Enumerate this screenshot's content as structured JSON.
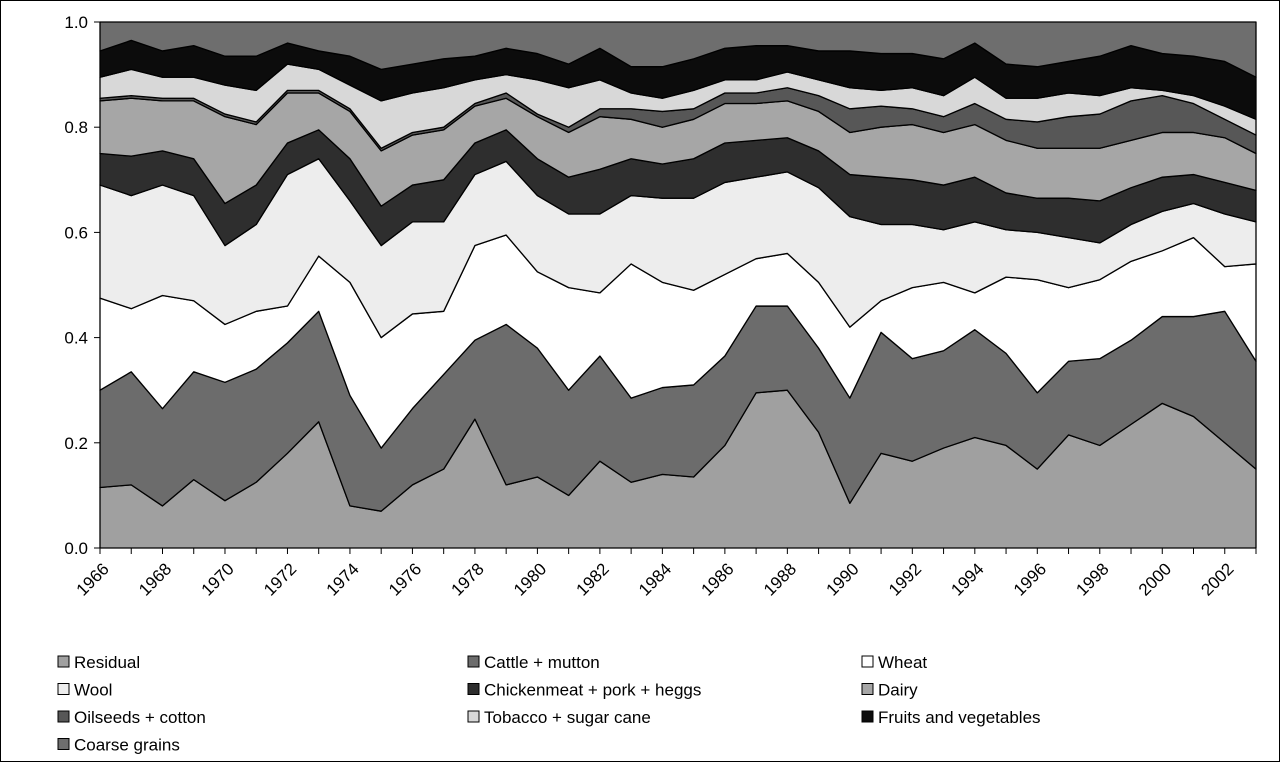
{
  "chart_data": {
    "type": "stacked_area",
    "categories": [
      "1966",
      null,
      "1968",
      null,
      "1970",
      null,
      "1972",
      null,
      "1974",
      null,
      "1976",
      null,
      "1978",
      null,
      "1980",
      null,
      "1982",
      null,
      "1984",
      null,
      "1986",
      null,
      "1988",
      null,
      "1990",
      null,
      "1992",
      null,
      "1994",
      null,
      "1996",
      null,
      "1998",
      null,
      "2000",
      null,
      "2002",
      null
    ],
    "ylim": [
      0,
      1
    ],
    "yticks": [
      {
        "value": 0,
        "label": "0.0"
      },
      0.2,
      0.4,
      0.6,
      0.8,
      {
        "value": 1,
        "label": "1.0"
      }
    ],
    "legend": "bottom",
    "series": [
      {
        "name": "Residual",
        "color": "#a0a0a0",
        "values": [
          0.115,
          0.12,
          0.08,
          0.13,
          0.09,
          0.125,
          0.18,
          0.24,
          0.08,
          0.07,
          0.12,
          0.15,
          0.245,
          0.12,
          0.135,
          0.1,
          0.165,
          0.125,
          0.14,
          0.135,
          0.195,
          0.295,
          0.3,
          0.22,
          0.085,
          0.18,
          0.165,
          0.19,
          0.21,
          0.195,
          0.15,
          0.215,
          0.195,
          0.235,
          0.275,
          0.25,
          0.2,
          0.15
        ]
      },
      {
        "name": "Cattle + mutton",
        "color": "#6c6c6c",
        "values": [
          0.185,
          0.215,
          0.185,
          0.205,
          0.225,
          0.215,
          0.21,
          0.21,
          0.21,
          0.12,
          0.145,
          0.18,
          0.15,
          0.305,
          0.245,
          0.2,
          0.2,
          0.16,
          0.165,
          0.175,
          0.17,
          0.165,
          0.16,
          0.16,
          0.2,
          0.23,
          0.195,
          0.185,
          0.205,
          0.175,
          0.145,
          0.14,
          0.165,
          0.16,
          0.165,
          0.19,
          0.25,
          0.205
        ]
      },
      {
        "name": "Wheat",
        "color": "#ffffff",
        "values": [
          0.175,
          0.12,
          0.215,
          0.135,
          0.11,
          0.11,
          0.07,
          0.105,
          0.215,
          0.21,
          0.18,
          0.12,
          0.18,
          0.17,
          0.145,
          0.195,
          0.12,
          0.255,
          0.2,
          0.18,
          0.155,
          0.09,
          0.1,
          0.125,
          0.135,
          0.06,
          0.135,
          0.13,
          0.07,
          0.145,
          0.215,
          0.14,
          0.15,
          0.15,
          0.125,
          0.15,
          0.085,
          0.185
        ]
      },
      {
        "name": "Wool",
        "color": "#ededed",
        "values": [
          0.215,
          0.215,
          0.21,
          0.2,
          0.15,
          0.165,
          0.25,
          0.185,
          0.155,
          0.175,
          0.175,
          0.17,
          0.135,
          0.14,
          0.145,
          0.14,
          0.15,
          0.13,
          0.16,
          0.175,
          0.175,
          0.155,
          0.155,
          0.18,
          0.21,
          0.145,
          0.12,
          0.1,
          0.135,
          0.09,
          0.09,
          0.095,
          0.07,
          0.07,
          0.075,
          0.065,
          0.1,
          0.08
        ]
      },
      {
        "name": "Chickenmeat + pork + heggs",
        "color": "#2e2e2e",
        "values": [
          0.06,
          0.075,
          0.065,
          0.07,
          0.08,
          0.075,
          0.06,
          0.055,
          0.08,
          0.075,
          0.07,
          0.08,
          0.06,
          0.06,
          0.07,
          0.07,
          0.085,
          0.07,
          0.065,
          0.075,
          0.075,
          0.07,
          0.065,
          0.07,
          0.08,
          0.09,
          0.085,
          0.085,
          0.085,
          0.07,
          0.065,
          0.075,
          0.08,
          0.07,
          0.065,
          0.055,
          0.06,
          0.06
        ]
      },
      {
        "name": "Dairy",
        "color": "#a6a6a6",
        "values": [
          0.1,
          0.11,
          0.095,
          0.11,
          0.165,
          0.115,
          0.095,
          0.07,
          0.09,
          0.105,
          0.095,
          0.095,
          0.07,
          0.06,
          0.08,
          0.085,
          0.1,
          0.075,
          0.07,
          0.075,
          0.075,
          0.07,
          0.07,
          0.075,
          0.08,
          0.095,
          0.105,
          0.1,
          0.1,
          0.1,
          0.095,
          0.095,
          0.1,
          0.09,
          0.085,
          0.08,
          0.085,
          0.07
        ]
      },
      {
        "name": "Oilseeds + cotton",
        "color": "#575757",
        "values": [
          0.005,
          0.005,
          0.005,
          0.005,
          0.005,
          0.005,
          0.005,
          0.005,
          0.005,
          0.005,
          0.005,
          0.005,
          0.005,
          0.01,
          0.005,
          0.01,
          0.015,
          0.02,
          0.03,
          0.02,
          0.02,
          0.02,
          0.025,
          0.03,
          0.045,
          0.04,
          0.03,
          0.03,
          0.04,
          0.04,
          0.05,
          0.06,
          0.065,
          0.075,
          0.07,
          0.055,
          0.035,
          0.035
        ]
      },
      {
        "name": "Tobacco + sugar cane",
        "color": "#d8d8d8",
        "values": [
          0.04,
          0.05,
          0.04,
          0.04,
          0.055,
          0.06,
          0.05,
          0.04,
          0.045,
          0.09,
          0.075,
          0.075,
          0.045,
          0.035,
          0.065,
          0.075,
          0.055,
          0.03,
          0.025,
          0.035,
          0.025,
          0.025,
          0.03,
          0.03,
          0.04,
          0.03,
          0.04,
          0.04,
          0.05,
          0.04,
          0.045,
          0.045,
          0.035,
          0.025,
          0.01,
          0.015,
          0.025,
          0.03
        ]
      },
      {
        "name": "Fruits and vegetables",
        "color": "#0c0c0c",
        "values": [
          0.05,
          0.055,
          0.05,
          0.06,
          0.055,
          0.065,
          0.04,
          0.035,
          0.055,
          0.06,
          0.055,
          0.055,
          0.045,
          0.05,
          0.05,
          0.045,
          0.06,
          0.05,
          0.06,
          0.06,
          0.06,
          0.065,
          0.05,
          0.055,
          0.07,
          0.07,
          0.065,
          0.07,
          0.065,
          0.065,
          0.06,
          0.06,
          0.075,
          0.08,
          0.07,
          0.075,
          0.085,
          0.08
        ]
      },
      {
        "name": "Coarse grains",
        "color": "#6e6e6e",
        "values": [
          0.055,
          0.035,
          0.055,
          0.045,
          0.065,
          0.065,
          0.04,
          0.055,
          0.065,
          0.09,
          0.08,
          0.07,
          0.065,
          0.05,
          0.06,
          0.08,
          0.05,
          0.085,
          0.085,
          0.07,
          0.05,
          0.045,
          0.045,
          0.055,
          0.055,
          0.06,
          0.06,
          0.07,
          0.04,
          0.08,
          0.085,
          0.075,
          0.065,
          0.045,
          0.06,
          0.065,
          0.075,
          0.105
        ]
      }
    ]
  }
}
